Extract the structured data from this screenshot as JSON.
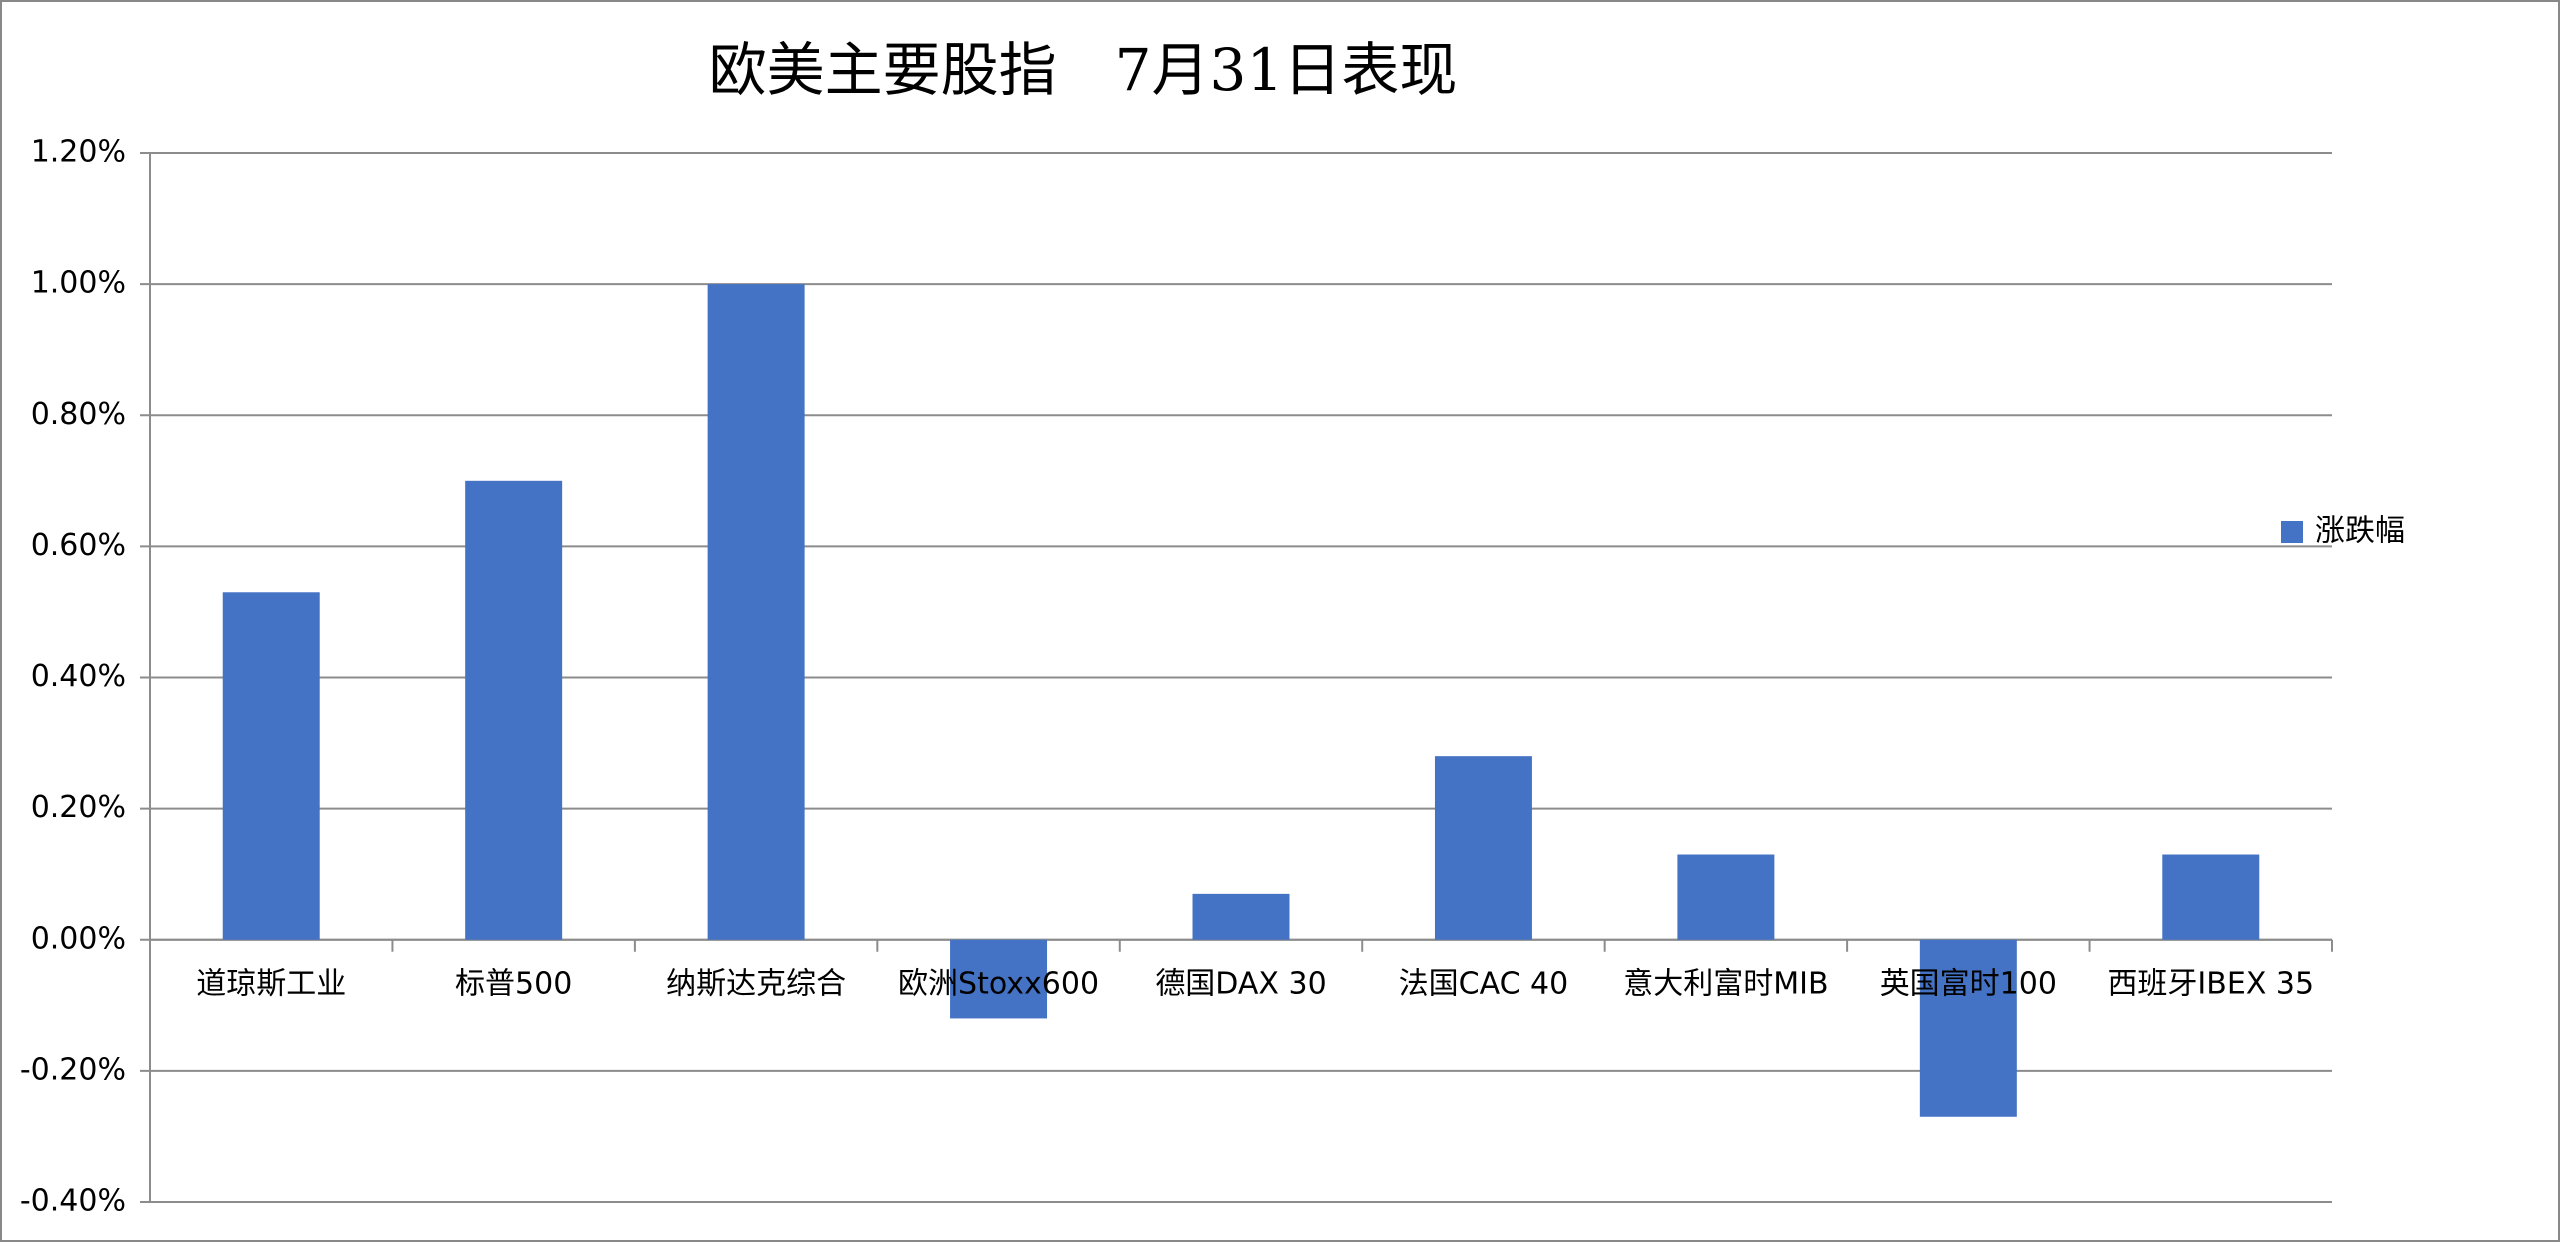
{
  "chart_data": {
    "type": "bar",
    "title": "欧美主要股指　7月31日表现",
    "categories": [
      "道琼斯工业",
      "标普500",
      "纳斯达克综合",
      "欧洲Stoxx600",
      "德国DAX 30",
      "法国CAC 40",
      "意大利富时MIB",
      "英国富时100",
      "西班牙IBEX 35"
    ],
    "series": [
      {
        "name": "涨跌幅",
        "color": "#4472c4",
        "values": [
          0.53,
          0.7,
          1.0,
          -0.12,
          0.07,
          0.28,
          0.13,
          -0.27,
          0.13
        ]
      }
    ],
    "ylim": [
      -0.4,
      1.2
    ],
    "yticks": [
      {
        "value": -0.4,
        "label": "-0.40%"
      },
      {
        "value": -0.2,
        "label": "-0.20%"
      },
      {
        "value": 0,
        "label": "0.00%"
      },
      {
        "value": 0.2,
        "label": "0.20%"
      },
      {
        "value": 0.4,
        "label": "0.40%"
      },
      {
        "value": 0.6,
        "label": "0.60%"
      },
      {
        "value": 0.8,
        "label": "0.80%"
      },
      {
        "value": 1.0,
        "label": "1.00%"
      },
      {
        "value": 1.2,
        "label": "1.20%"
      }
    ],
    "grid": true,
    "legend": "right"
  }
}
